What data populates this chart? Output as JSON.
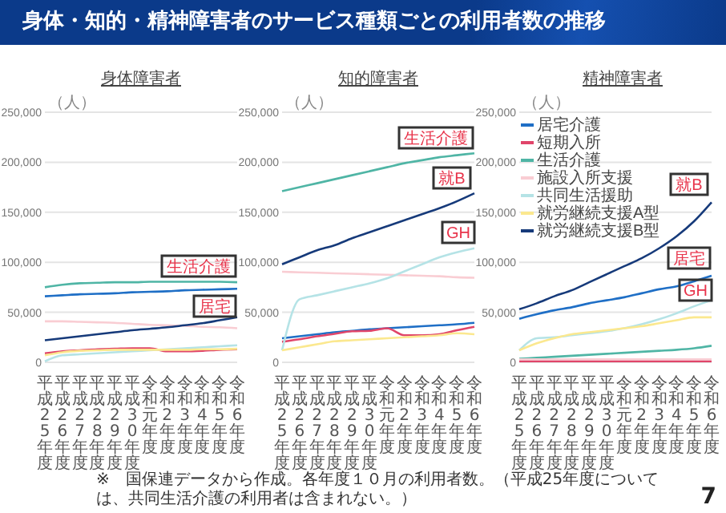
{
  "chart_data": [
    {
      "type": "other",
      "title": "身体・知的・精神障害者のサービス種類ごとの利用者数の推移",
      "annotations": [
        "※　国保連データから作成。各年度１０月の利用者数。（平成25年度については、共同生活介護の利用者は含まれない。）",
        "7"
      ]
    },
    {
      "type": "line",
      "title": "身体障害者",
      "ylabel": "（人）",
      "categories": [
        "平成25年度",
        "平成26年度",
        "平成27年度",
        "平成28年度",
        "平成29年度",
        "平成30年度",
        "令和元年度",
        "令和2年度",
        "令和3年度",
        "令和4年度",
        "令和5年度",
        "令和6年度"
      ],
      "ylim": [
        0,
        250000
      ],
      "yticks": [
        {
          "value": 0,
          "label": "0"
        },
        {
          "value": 50000,
          "label": "50,000"
        },
        {
          "value": 100000,
          "label": "100,000"
        },
        {
          "value": 150000,
          "label": "150,000"
        },
        {
          "value": 200000,
          "label": "200,000"
        },
        {
          "value": 250000,
          "label": "250,000"
        }
      ],
      "grid": "y",
      "legend": false,
      "marker": "none",
      "line_style": "solid",
      "series": [
        {
          "color": "#1f6fc6",
          "values": [
            66000,
            67000,
            68000,
            68500,
            69000,
            70000,
            70500,
            71000,
            72000,
            72500,
            73000,
            73500
          ]
        },
        {
          "color": "#e0456a",
          "values": [
            9000,
            11000,
            12000,
            13000,
            13500,
            14000,
            14000,
            11000,
            11000,
            11500,
            12500,
            13000
          ]
        },
        {
          "color": "#4fb5a5",
          "values": [
            75000,
            77500,
            79000,
            79500,
            80000,
            80000,
            80500,
            80500,
            80500,
            80500,
            80500,
            80000
          ]
        },
        {
          "color": "#f9cdd3",
          "values": [
            41000,
            41000,
            40500,
            40000,
            39500,
            38500,
            37500,
            37000,
            36500,
            35500,
            35000,
            34000
          ]
        },
        {
          "color": "#b5e3e6",
          "values": [
            1000,
            7000,
            8000,
            9000,
            10000,
            11000,
            12000,
            13000,
            14000,
            15000,
            16000,
            17000
          ]
        },
        {
          "color": "#fbe88f",
          "values": [
            7000,
            10000,
            11500,
            12000,
            12500,
            12500,
            12500,
            12500,
            12500,
            13000,
            13000,
            13500
          ]
        },
        {
          "color": "#163a7a",
          "values": [
            22000,
            24000,
            26000,
            28000,
            30000,
            32000,
            33500,
            35000,
            37000,
            39000,
            42000,
            45000
          ]
        }
      ],
      "annotations": [
        "生活介護",
        "居宅"
      ]
    },
    {
      "type": "line",
      "title": "知的障害者",
      "ylabel": "（人）",
      "categories": [
        "平成25年度",
        "平成26年度",
        "平成27年度",
        "平成28年度",
        "平成29年度",
        "平成30年度",
        "令和元年度",
        "令和2年度",
        "令和3年度",
        "令和4年度",
        "令和5年度",
        "令和6年度"
      ],
      "ylim": [
        0,
        250000
      ],
      "yticks": [
        {
          "value": 0,
          "label": "0"
        },
        {
          "value": 50000,
          "label": "50,000"
        },
        {
          "value": 100000,
          "label": "100,000"
        },
        {
          "value": 150000,
          "label": "150,000"
        },
        {
          "value": 200000,
          "label": "200,000"
        },
        {
          "value": 250000,
          "label": "250,000"
        }
      ],
      "grid": "y",
      "legend": false,
      "marker": "none",
      "line_style": "solid",
      "series": [
        {
          "color": "#1f6fc6",
          "values": [
            24000,
            26000,
            28000,
            30000,
            31500,
            33000,
            34000,
            35000,
            36000,
            37000,
            38000,
            39500
          ]
        },
        {
          "color": "#e0456a",
          "values": [
            20500,
            23000,
            26000,
            28500,
            31000,
            31500,
            34000,
            27000,
            27000,
            28000,
            32000,
            35500
          ]
        },
        {
          "color": "#4fb5a5",
          "values": [
            171000,
            175000,
            179000,
            183000,
            187000,
            191000,
            195000,
            199000,
            202000,
            205000,
            207000,
            209000
          ]
        },
        {
          "color": "#f9cdd3",
          "values": [
            90500,
            90000,
            89500,
            89000,
            88500,
            88000,
            87500,
            87000,
            86500,
            86000,
            85000,
            84500
          ]
        },
        {
          "color": "#b5e3e6",
          "values": [
            12000,
            63000,
            67000,
            71000,
            75000,
            79000,
            84000,
            91000,
            98000,
            105000,
            110000,
            114000
          ]
        },
        {
          "color": "#fbe88f",
          "values": [
            12000,
            15000,
            18000,
            21000,
            22000,
            23000,
            24000,
            25000,
            26000,
            27000,
            29000,
            28000
          ]
        },
        {
          "color": "#163a7a",
          "values": [
            98000,
            105000,
            112000,
            117000,
            124000,
            130000,
            136000,
            142000,
            148000,
            154000,
            161000,
            169000
          ]
        }
      ],
      "annotations": [
        "生活介護",
        "就B",
        "GH"
      ]
    },
    {
      "type": "line",
      "title": "精神障害者",
      "ylabel": "（人）",
      "categories": [
        "平成25年度",
        "平成26年度",
        "平成27年度",
        "平成28年度",
        "平成29年度",
        "平成30年度",
        "令和元年度",
        "令和2年度",
        "令和3年度",
        "令和4年度",
        "令和5年度",
        "令和6年度"
      ],
      "ylim": [
        0,
        250000
      ],
      "yticks": [
        {
          "value": 0,
          "label": "0"
        },
        {
          "value": 50000,
          "label": "50,000"
        },
        {
          "value": 100000,
          "label": "100,000"
        },
        {
          "value": 150000,
          "label": "150,000"
        },
        {
          "value": 200000,
          "label": "200,000"
        },
        {
          "value": 250000,
          "label": "250,000"
        }
      ],
      "grid": "y",
      "legend": "top left",
      "marker": "none",
      "line_style": "solid",
      "series": [
        {
          "name": "居宅介護",
          "color": "#1f6fc6",
          "values": [
            43500,
            48000,
            52000,
            55000,
            59000,
            62000,
            65000,
            69000,
            73000,
            76000,
            81000,
            86500
          ]
        },
        {
          "name": "短期入所",
          "color": "#e0456a",
          "values": [
            1000,
            1000,
            1000,
            1000,
            1000,
            1000,
            1000,
            1000,
            1000,
            1000,
            1000,
            1000
          ]
        },
        {
          "name": "生活介護",
          "color": "#4fb5a5",
          "values": [
            3500,
            4500,
            5500,
            6500,
            7500,
            8500,
            9500,
            10500,
            11500,
            12500,
            14000,
            16500
          ]
        },
        {
          "name": "施設入所支援",
          "color": "#f9cdd3",
          "values": [
            3000,
            3000,
            3000,
            3000,
            3000,
            3000,
            3000,
            3000,
            3000,
            3000,
            3000,
            3000
          ]
        },
        {
          "name": "共同生活援助",
          "color": "#b5e3e6",
          "values": [
            12000,
            24000,
            25000,
            27000,
            29000,
            31000,
            34000,
            38000,
            43000,
            49000,
            56000,
            62000
          ]
        },
        {
          "name": "就労継続支援A型",
          "color": "#fbe88f",
          "values": [
            12000,
            19000,
            24000,
            28000,
            30000,
            32000,
            34000,
            36000,
            39000,
            42000,
            45000,
            45000
          ]
        },
        {
          "name": "就労継続支援B型",
          "color": "#163a7a",
          "values": [
            53000,
            59000,
            66000,
            72000,
            80000,
            88000,
            96000,
            104000,
            114000,
            126000,
            141000,
            160000
          ]
        }
      ],
      "annotations": [
        "就B",
        "居宅",
        "GH"
      ]
    }
  ]
}
